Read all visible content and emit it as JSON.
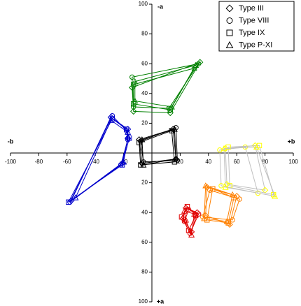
{
  "chart_data": {
    "type": "polygon-scatter",
    "x_label_neg": "-b",
    "x_label_pos": "+b",
    "y_label_neg": "-a",
    "y_label_pos": "+a",
    "xlim": [
      -100,
      100
    ],
    "xticks": [
      -100,
      -80,
      -60,
      -40,
      -20,
      20,
      40,
      60,
      80,
      100
    ],
    "ylim": [
      100,
      -100
    ],
    "yticks": [
      {
        "value": -100,
        "label": "100"
      },
      {
        "value": -80,
        "label": "80"
      },
      {
        "value": -60,
        "label": "60"
      },
      {
        "value": -40,
        "label": "40"
      },
      {
        "value": -20,
        "label": "20"
      },
      20,
      40,
      60,
      80,
      100
    ],
    "legend": "upper right",
    "series": [
      {
        "name": "Type III",
        "marker": "diamond",
        "polygons": [
          {
            "color": "#008000",
            "x": [
              -14,
              34,
              13,
              -13
            ],
            "y": [
              -44,
              -61,
              -27,
              -28
            ]
          },
          {
            "color": "#0000cc",
            "x": [
              -29,
              -17,
              -17,
              -21,
              -57
            ],
            "y": [
              -24,
              -16,
              -10,
              7,
              32
            ]
          },
          {
            "color": "#000000",
            "x": [
              -9,
              15,
              17,
              -7
            ],
            "y": [
              -9,
              -16,
              4,
              7
            ]
          },
          {
            "color": "#ffff00",
            "line_color": "#c0c0c0",
            "x": [
              52,
              73,
              80,
              53
            ],
            "y": [
              -3,
              -5,
              25,
              21
            ]
          },
          {
            "color": "#ff8000",
            "x": [
              39,
              60,
              55,
              38
            ],
            "y": [
              23,
              29,
              48,
              42
            ]
          },
          {
            "color": "#e00000",
            "x": [
              24,
              32,
              28,
              22
            ],
            "y": [
              37,
              40,
              53,
              44
            ]
          }
        ]
      },
      {
        "name": "Type VIII",
        "marker": "circle",
        "polygons": [
          {
            "color": "#008000",
            "x": [
              -14,
              33,
              12,
              -13
            ],
            "y": [
              -51,
              -60,
              -30,
              -31
            ]
          },
          {
            "color": "#0000cc",
            "x": [
              -28,
              -18,
              -17,
              -22,
              -58
            ],
            "y": [
              -25,
              -15,
              -9,
              8,
              33
            ]
          },
          {
            "color": "#000000",
            "x": [
              -8,
              17,
              18,
              -6
            ],
            "y": [
              -8,
              -17,
              5,
              6
            ]
          },
          {
            "color": "#ffff00",
            "line_color": "#c0c0c0",
            "x": [
              48,
              66,
              75,
              49
            ],
            "y": [
              -2,
              -4,
              27,
              22
            ]
          },
          {
            "color": "#ff8000",
            "x": [
              41,
              62,
              57,
              36
            ],
            "y": [
              25,
              31,
              45,
              43
            ]
          },
          {
            "color": "#e00000",
            "x": [
              26,
              33,
              27,
              23
            ],
            "y": [
              38,
              41,
              54,
              46
            ]
          }
        ]
      },
      {
        "name": "Type IX",
        "marker": "square",
        "polygons": [
          {
            "color": "#008000",
            "x": [
              -13,
              30,
              13,
              -13
            ],
            "y": [
              -46,
              -57,
              -29,
              -33
            ]
          },
          {
            "color": "#0000cc",
            "x": [
              -28,
              -18,
              -16,
              -21,
              -59
            ],
            "y": [
              -23,
              -16,
              -10,
              8,
              33
            ]
          },
          {
            "color": "#000000",
            "x": [
              -9,
              14,
              16,
              -8
            ],
            "y": [
              -7,
              -15,
              6,
              8
            ]
          },
          {
            "color": "#ffff00",
            "line_color": "#c0c0c0",
            "x": [
              54,
              76,
              86,
              55
            ],
            "y": [
              -4,
              -5,
              28,
              22
            ]
          },
          {
            "color": "#ff8000",
            "x": [
              43,
              58,
              54,
              39
            ],
            "y": [
              24,
              30,
              47,
              45
            ]
          },
          {
            "color": "#e00000",
            "x": [
              25,
              31,
              26,
              21
            ],
            "y": [
              36,
              42,
              52,
              43
            ]
          }
        ]
      },
      {
        "name": "Type P-XI",
        "marker": "triangle",
        "polygons": [
          {
            "color": "#008000",
            "x": [
              -12,
              31,
              14,
              -12
            ],
            "y": [
              -48,
              -59,
              -31,
              -35
            ]
          },
          {
            "color": "#0000cc",
            "x": [
              -29,
              -17,
              -17,
              -20,
              -54
            ],
            "y": [
              -22,
              -14,
              -11,
              6,
              30
            ]
          },
          {
            "color": "#000000",
            "x": [
              -7,
              16,
              17,
              -6
            ],
            "y": [
              -9,
              -16,
              4,
              8
            ]
          },
          {
            "color": "#ffff00",
            "line_color": "#c0c0c0",
            "x": [
              51,
              74,
              87,
              52
            ],
            "y": [
              -3,
              -4,
              29,
              23
            ]
          },
          {
            "color": "#ff8000",
            "x": [
              38,
              57,
              53,
              37
            ],
            "y": [
              22,
              28,
              46,
              44
            ]
          },
          {
            "color": "#e00000",
            "x": [
              23,
              30,
              28,
              24
            ],
            "y": [
              39,
              41,
              55,
              45
            ]
          }
        ]
      }
    ]
  }
}
